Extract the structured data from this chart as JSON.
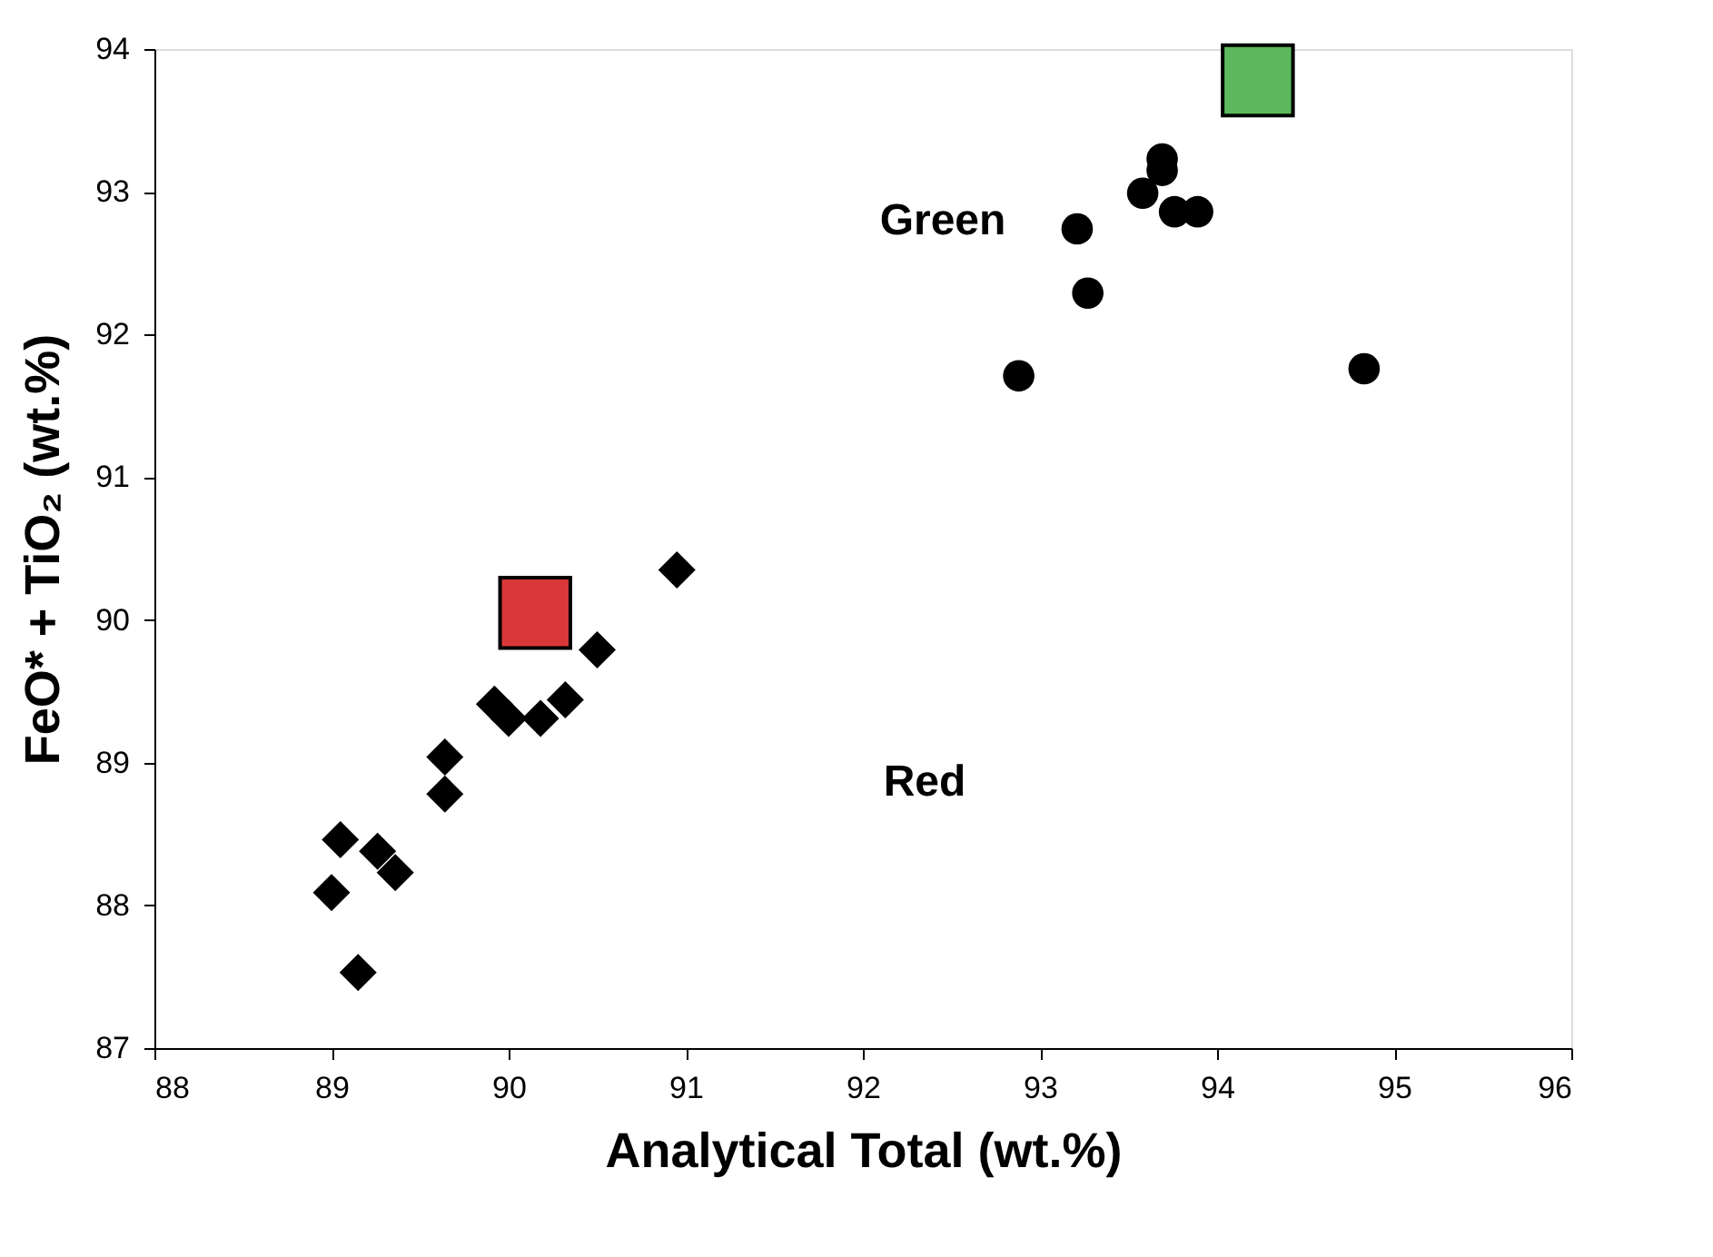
{
  "chart_data": {
    "type": "scatter",
    "xlabel": "Analytical Total (wt.%)",
    "ylabel": "FeO* + TiO₂ (wt.%)",
    "xlim": [
      88,
      96
    ],
    "xticks": [
      88,
      89,
      90,
      91,
      92,
      93,
      94,
      95,
      96
    ],
    "ylim": [
      87,
      94
    ],
    "yticks": [
      87,
      88,
      89,
      90,
      91,
      92,
      93,
      94
    ],
    "grid": false,
    "series": [
      {
        "color": "#000000",
        "marker": "diamond",
        "x": [
          90.95,
          90.5,
          89.92,
          90.0,
          90.18,
          90.32,
          89.64,
          89.64,
          89.05,
          89.26,
          89.36,
          89.0,
          89.15
        ],
        "values": [
          90.35,
          89.79,
          89.41,
          89.31,
          89.31,
          89.44,
          89.04,
          88.78,
          88.46,
          88.38,
          88.23,
          88.09,
          87.53
        ]
      },
      {
        "color": "#000000",
        "marker": "circle",
        "x": [
          93.69,
          93.69,
          93.58,
          93.76,
          93.89,
          93.21,
          93.27,
          92.88,
          94.83
        ],
        "values": [
          93.23,
          93.15,
          92.99,
          92.86,
          92.86,
          92.74,
          92.29,
          91.71,
          91.76
        ]
      },
      {
        "color": "#d9383a",
        "marker": "square",
        "x": [
          90.15
        ],
        "values": [
          90.05
        ]
      },
      {
        "color": "#5cb85c",
        "marker": "square",
        "x": [
          94.23
        ],
        "values": [
          93.78
        ]
      }
    ],
    "annotations": [
      "Green",
      "Red"
    ]
  }
}
